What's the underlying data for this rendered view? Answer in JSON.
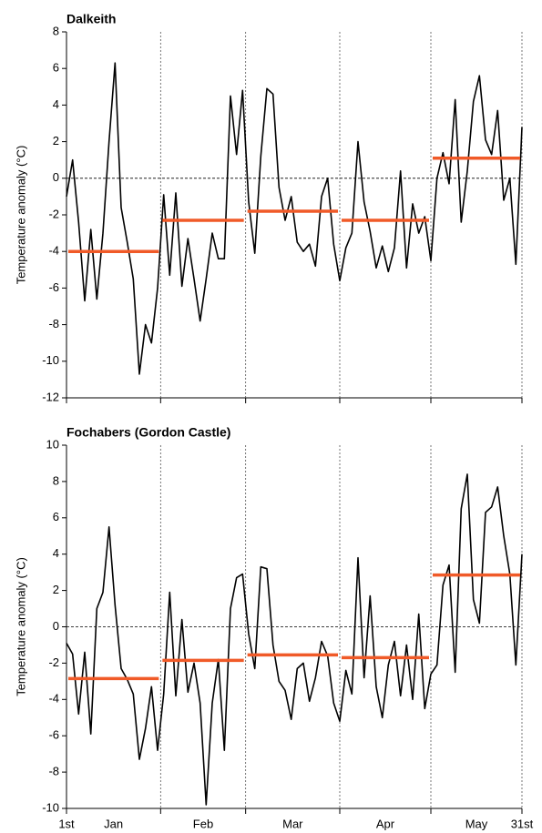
{
  "chart_data": [
    {
      "type": "line",
      "title": "Dalkeith",
      "ylabel": "Temperature anomaly (°C)",
      "xlim": [
        1,
        151
      ],
      "ylim": [
        -12,
        8
      ],
      "yticks": [
        -12,
        -10,
        -8,
        -6,
        -4,
        -2,
        0,
        2,
        4,
        6,
        8
      ],
      "month_bounds": [
        1,
        32,
        60,
        91,
        121,
        151
      ],
      "zero_line": true,
      "series": [
        {
          "color": "#000000",
          "x": [
            1,
            3,
            5,
            7,
            9,
            11,
            13,
            15,
            17,
            19,
            21,
            23,
            25,
            27,
            29,
            31,
            33,
            35,
            37,
            39,
            41,
            43,
            45,
            47,
            49,
            51,
            53,
            55,
            57,
            59,
            61,
            63,
            65,
            67,
            69,
            71,
            73,
            75,
            77,
            79,
            81,
            83,
            85,
            87,
            89,
            91,
            93,
            95,
            97,
            99,
            101,
            103,
            105,
            107,
            109,
            111,
            113,
            115,
            117,
            119,
            121,
            123,
            125,
            127,
            129,
            131,
            133,
            135,
            137,
            139,
            141,
            143,
            145,
            147,
            149,
            151
          ],
          "values": [
            -1,
            1,
            -2.4,
            -6.7,
            -2.8,
            -6.6,
            -3,
            2,
            6.3,
            -1.6,
            -3.5,
            -5.5,
            -10.7,
            -8,
            -9,
            -6,
            -0.9,
            -5.3,
            -0.8,
            -5.9,
            -3.3,
            -5.5,
            -7.8,
            -5.5,
            -3,
            -4.4,
            -4.4,
            4.5,
            1.3,
            4.8,
            -1.3,
            -4.1,
            1.2,
            4.9,
            4.6,
            -0.5,
            -2.3,
            -1,
            -3.5,
            -4,
            -3.6,
            -4.8,
            -1,
            0,
            -3.6,
            -5.6,
            -3.8,
            -3,
            2,
            -1.3,
            -2.9,
            -4.9,
            -3.7,
            -5.1,
            -3.8,
            0.4,
            -4.9,
            -1.4,
            -3,
            -2.1,
            -4.5,
            0,
            1.4,
            -0.3,
            4.3,
            -2.4,
            0.4,
            4.2,
            5.6,
            2.1,
            1.3,
            3.7,
            -1.2,
            0,
            -4.7,
            2.8
          ]
        }
      ],
      "monthly_means": {
        "color": "#f05a28",
        "values": [
          -4,
          -2.3,
          -1.8,
          -2.3,
          1.1
        ]
      }
    },
    {
      "type": "line",
      "title": "Fochabers (Gordon Castle)",
      "ylabel": "Temperature anomaly (°C)",
      "xlim": [
        1,
        151
      ],
      "ylim": [
        -10,
        10
      ],
      "yticks": [
        -10,
        -8,
        -6,
        -4,
        -2,
        0,
        2,
        4,
        6,
        8,
        10
      ],
      "month_bounds": [
        1,
        32,
        60,
        91,
        121,
        151
      ],
      "zero_line": true,
      "xticks": [
        {
          "value": 1,
          "label": "1st"
        },
        {
          "value": 151,
          "label": "31st"
        }
      ],
      "categories": [
        "Jan",
        "Feb",
        "Mar",
        "Apr",
        "May"
      ],
      "series": [
        {
          "color": "#000000",
          "x": [
            1,
            3,
            5,
            7,
            9,
            11,
            13,
            15,
            17,
            19,
            21,
            23,
            25,
            27,
            29,
            31,
            33,
            35,
            37,
            39,
            41,
            43,
            45,
            47,
            49,
            51,
            53,
            55,
            57,
            59,
            61,
            63,
            65,
            67,
            69,
            71,
            73,
            75,
            77,
            79,
            81,
            83,
            85,
            87,
            89,
            91,
            93,
            95,
            97,
            99,
            101,
            103,
            105,
            107,
            109,
            111,
            113,
            115,
            117,
            119,
            121,
            123,
            125,
            127,
            129,
            131,
            133,
            135,
            137,
            139,
            141,
            143,
            145,
            147,
            149,
            151
          ],
          "values": [
            -0.9,
            -1.5,
            -4.8,
            -1.4,
            -5.9,
            1,
            1.9,
            5.5,
            1.2,
            -2.3,
            -2.9,
            -3.7,
            -7.3,
            -5.6,
            -3.3,
            -6.8,
            -3.7,
            1.9,
            -3.8,
            0.4,
            -3.6,
            -2,
            -4.2,
            -9.8,
            -4.2,
            -1.8,
            -6.8,
            1,
            2.7,
            2.9,
            -0.4,
            -2.3,
            3.3,
            3.2,
            -1,
            -3,
            -3.5,
            -5.1,
            -2.3,
            -2,
            -4.1,
            -2.8,
            -0.8,
            -1.6,
            -4.2,
            -5.2,
            -2.4,
            -3.7,
            3.8,
            -2.8,
            1.7,
            -3.3,
            -5,
            -2.1,
            -0.8,
            -3.8,
            -1,
            -4,
            0.7,
            -4.5,
            -2.6,
            -2.1,
            2.3,
            3.4,
            -2.5,
            6.5,
            8.4,
            1.5,
            0.2,
            6.3,
            6.6,
            7.7,
            5,
            2.9,
            -2.1,
            4
          ]
        }
      ],
      "monthly_means": {
        "color": "#f05a28",
        "values": [
          -2.85,
          -1.85,
          -1.55,
          -1.7,
          2.85
        ]
      }
    }
  ]
}
